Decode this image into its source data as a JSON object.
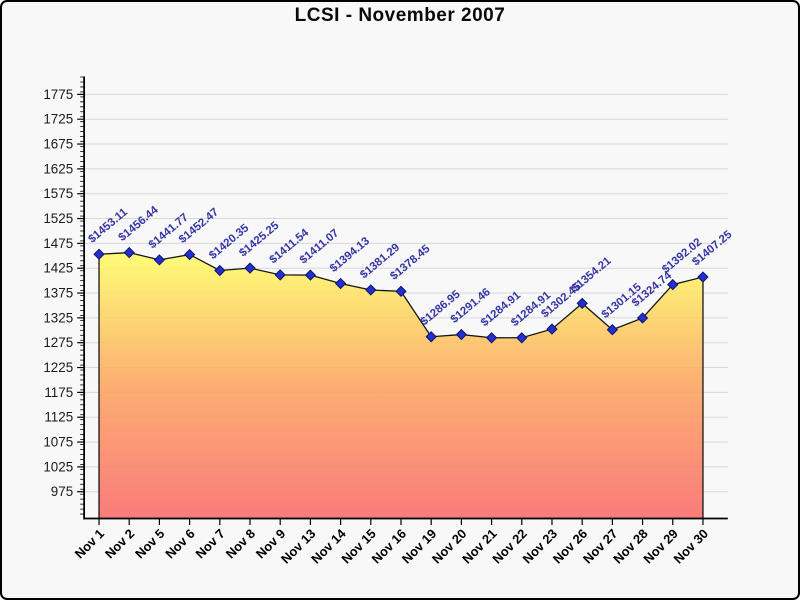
{
  "title": "LCSI - November 2007",
  "chart_data": {
    "type": "area",
    "title": "LCSI - November 2007",
    "categories": [
      "Nov 1",
      "Nov 2",
      "Nov 5",
      "Nov 6",
      "Nov 7",
      "Nov 8",
      "Nov 9",
      "Nov 13",
      "Nov 14",
      "Nov 15",
      "Nov 16",
      "Nov 19",
      "Nov 20",
      "Nov 21",
      "Nov 22",
      "Nov 23",
      "Nov 26",
      "Nov 27",
      "Nov 28",
      "Nov 29",
      "Nov 30"
    ],
    "values": [
      1453.11,
      1456.44,
      1441.77,
      1452.47,
      1420.35,
      1425.25,
      1411.54,
      1411.07,
      1394.13,
      1381.29,
      1378.45,
      1286.95,
      1291.46,
      1284.91,
      1284.91,
      1302.45,
      1354.21,
      1301.15,
      1324.74,
      1392.02,
      1407.25
    ],
    "point_labels": [
      "$1453.11",
      "$1456.44",
      "$1441.77",
      "$1452.47",
      "$1420.35",
      "$1425.25",
      "$1411.54",
      "$1411.07",
      "$1394.13",
      "$1381.29",
      "$1378.45",
      "$1286.95",
      "$1291.46",
      "$1284.91",
      "$1284.91",
      "$1302.45",
      "$1354.21",
      "$1301.15",
      "$1324.74",
      "$1392.02",
      "$1407.25"
    ],
    "yticks": [
      975,
      1025,
      1075,
      1125,
      1175,
      1225,
      1275,
      1325,
      1375,
      1425,
      1475,
      1525,
      1575,
      1625,
      1675,
      1725,
      1775
    ],
    "ylim": [
      921,
      1811
    ],
    "grid": true,
    "legend": "none",
    "xlabel": "",
    "ylabel": "",
    "colors": {
      "background": "#F8F8F8",
      "grid": "#D9D9D9",
      "axis": "#000000",
      "area_top": "#FFFF66",
      "area_mid": "#FDA55F",
      "area_bottom": "#FA6A6A",
      "line": "#141414",
      "marker_fill": "#2330CB",
      "marker_stroke": "#0D1270",
      "value_label": "#3434A6",
      "x_label": "#000000",
      "y_label": "#1A1A1A"
    }
  }
}
